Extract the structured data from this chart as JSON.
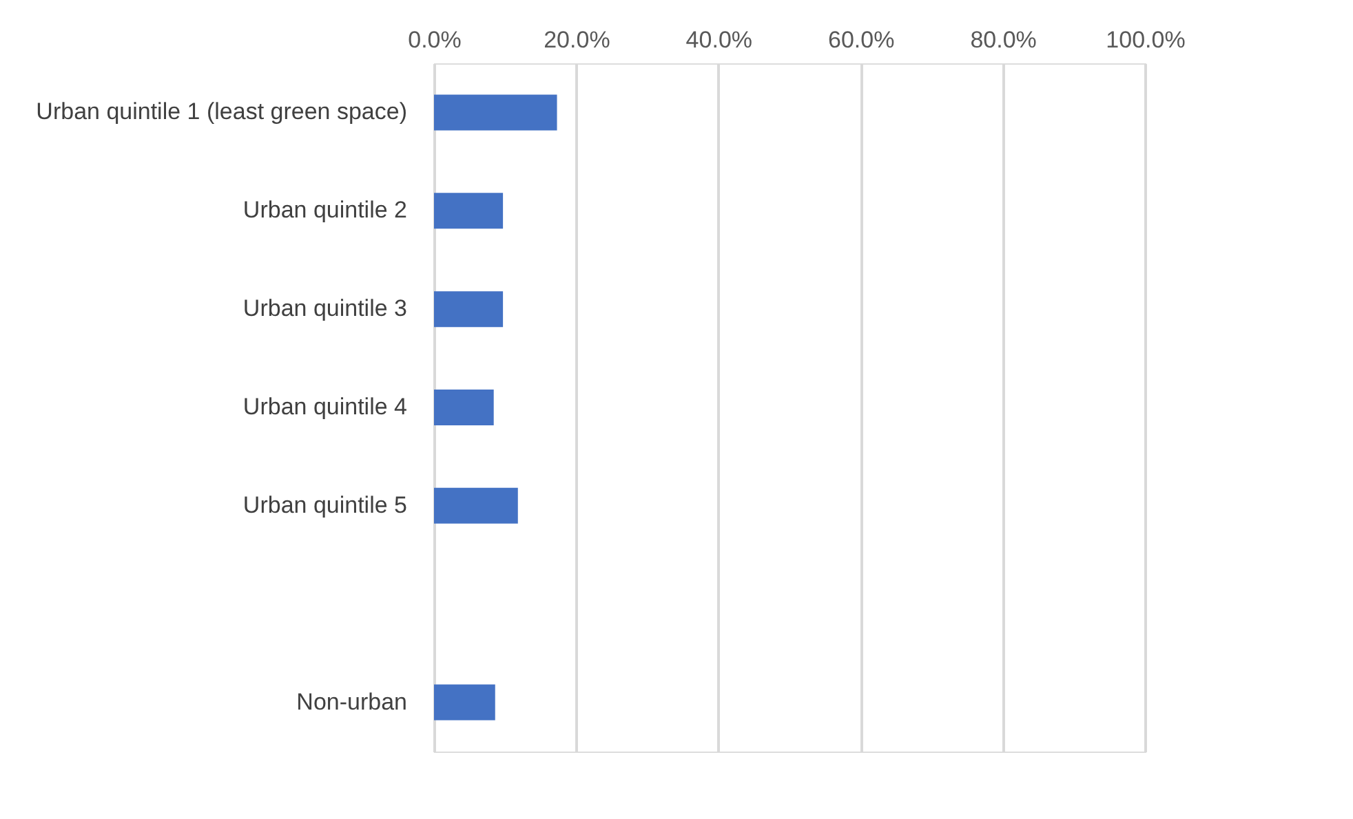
{
  "chart_data": {
    "type": "bar",
    "orientation": "horizontal",
    "categories": [
      "Urban quintile 1  (least green space)",
      "Urban quintile 2",
      "Urban quintile 3",
      "Urban quintile 4",
      "Urban quintile 5",
      null,
      "Non-urban"
    ],
    "series": [
      {
        "color": "#4472c4",
        "values": [
          17.3,
          9.7,
          9.7,
          8.4,
          11.8,
          null,
          8.6
        ]
      }
    ],
    "xlim": [
      0,
      100
    ],
    "xticks": [
      {
        "value": 0,
        "label": "0.0%"
      },
      {
        "value": 20,
        "label": "20.0%"
      },
      {
        "value": 40,
        "label": "40.0%"
      },
      {
        "value": 60,
        "label": "60.0%"
      },
      {
        "value": 80,
        "label": "80.0%"
      },
      {
        "value": 100,
        "label": "100.0%"
      }
    ],
    "grid": "x"
  }
}
